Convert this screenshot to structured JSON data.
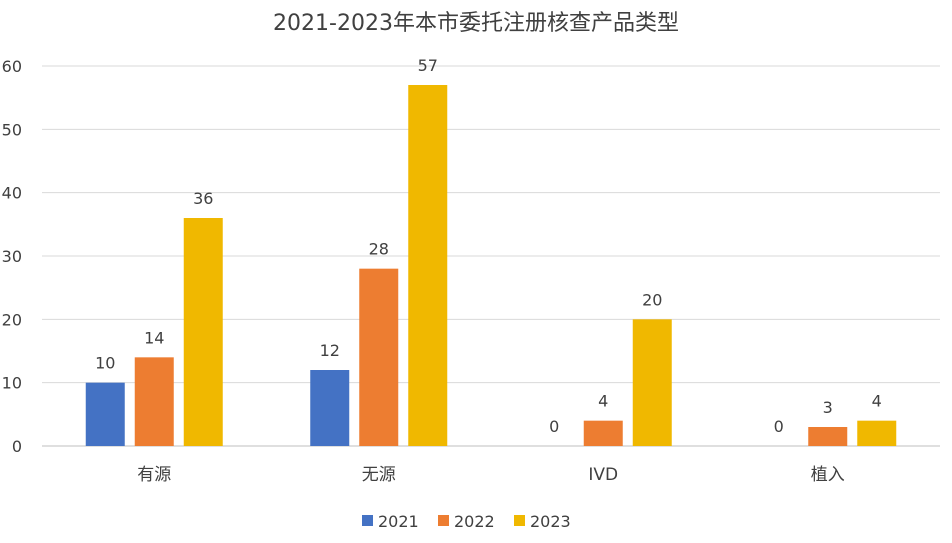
{
  "chart_data": {
    "type": "bar",
    "title": "2021-2023年本市委托注册核查产品类型",
    "categories": [
      "有源",
      "无源",
      "IVD",
      "植入"
    ],
    "series": [
      {
        "name": "2021",
        "values": [
          10,
          12,
          0,
          0
        ],
        "color": "#4472C4"
      },
      {
        "name": "2022",
        "values": [
          14,
          28,
          4,
          3
        ],
        "color": "#ED7D31"
      },
      {
        "name": "2023",
        "values": [
          36,
          57,
          20,
          4
        ],
        "color": "#F0B800"
      }
    ],
    "data_labels": [
      [
        "10",
        "12",
        "0",
        "0"
      ],
      [
        "14",
        "28",
        "4",
        "3"
      ],
      [
        "36",
        "57",
        "20",
        "4"
      ]
    ],
    "ylim": [
      0,
      60
    ],
    "yticks": [
      "0",
      "10",
      "20",
      "30",
      "40",
      "50",
      "60"
    ],
    "grid": true,
    "legend_position": "bottom"
  }
}
